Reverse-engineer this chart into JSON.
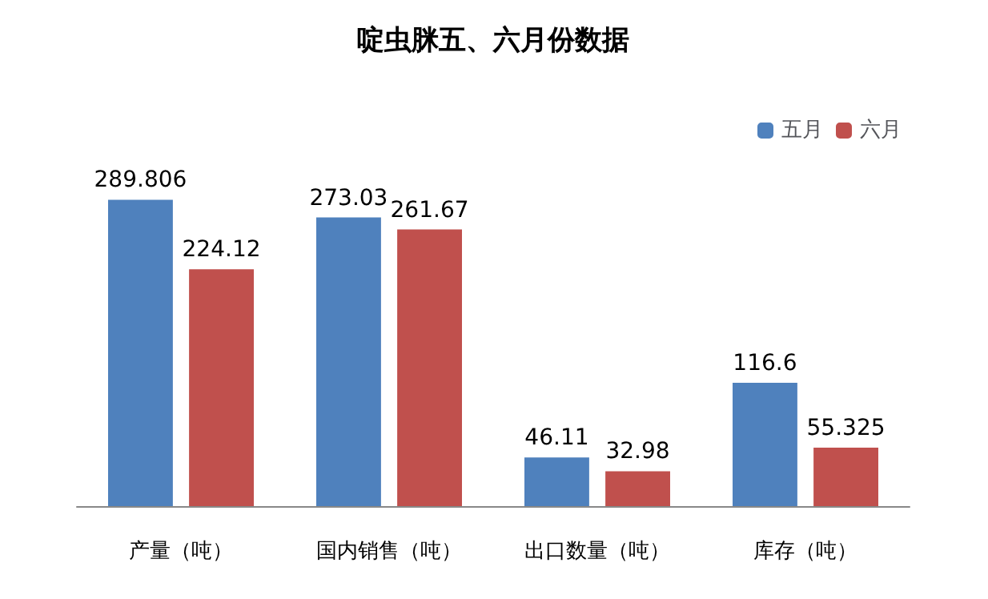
{
  "chart_data": {
    "type": "bar",
    "title": "啶虫脒五、六月份数据",
    "categories": [
      "产量（吨）",
      "国内销售（吨）",
      "出口数量（吨）",
      "库存（吨）"
    ],
    "series": [
      {
        "name": "五月",
        "color": "#4f81bd",
        "values": [
          289.806,
          273.03,
          46.11,
          116.6
        ]
      },
      {
        "name": "六月",
        "color": "#c0504d",
        "values": [
          224.12,
          261.67,
          32.98,
          55.325
        ]
      }
    ],
    "data_labels": true,
    "legend": "top right"
  }
}
